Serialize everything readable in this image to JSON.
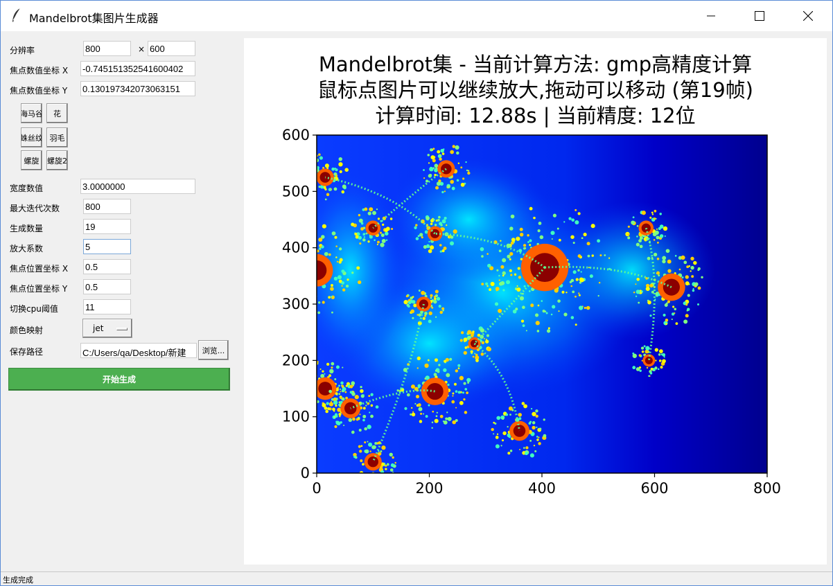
{
  "window": {
    "title": "Mandelbrot集图片生成器",
    "icon": "feather-icon"
  },
  "controls": {
    "resolution": {
      "label": "分辨率",
      "width": "800",
      "times": "×",
      "height": "600"
    },
    "focus_x": {
      "label": "焦点数值坐标 X",
      "value": "-0.745151352541600402"
    },
    "focus_y": {
      "label": "焦点数值坐标 Y",
      "value": "0.130197342073063151"
    },
    "presets": [
      "海马谷",
      "花",
      "蛛丝纹",
      "羽毛",
      "螺旋",
      "螺旋2"
    ],
    "width_value": {
      "label": "宽度数值",
      "value": "3.0000000"
    },
    "max_iter": {
      "label": "最大迭代次数",
      "value": "800"
    },
    "count": {
      "label": "生成数量",
      "value": "19"
    },
    "zoom_factor": {
      "label": "放大系数",
      "value": "5"
    },
    "focus_pos_x": {
      "label": "焦点位置坐标 X",
      "value": "0.5"
    },
    "focus_pos_y": {
      "label": "焦点位置坐标 Y",
      "value": "0.5"
    },
    "cpu_threshold": {
      "label": "切换cpu阈值",
      "value": "11"
    },
    "colormap": {
      "label": "颜色映射",
      "value": "jet"
    },
    "save_path": {
      "label": "保存路径",
      "value": "C:/Users/qa/Desktop/新建",
      "browse": "浏览..."
    },
    "generate": "开始生成"
  },
  "plot": {
    "title_lines": [
      "Mandelbrot集 - 当前计算方法: gmp高精度计算",
      "鼠标点图片可以继续放大,拖动可以移动 (第19帧)",
      "计算时间: 12.88s | 当前精度: 12位"
    ],
    "colormap": "jet",
    "xlim": [
      0,
      800
    ],
    "ylim": [
      0,
      600
    ],
    "x_ticks": [
      "0",
      "200",
      "400",
      "600",
      "800"
    ],
    "y_ticks": [
      "0",
      "100",
      "200",
      "300",
      "400",
      "500",
      "600"
    ]
  },
  "status": {
    "text": "生成完成"
  }
}
